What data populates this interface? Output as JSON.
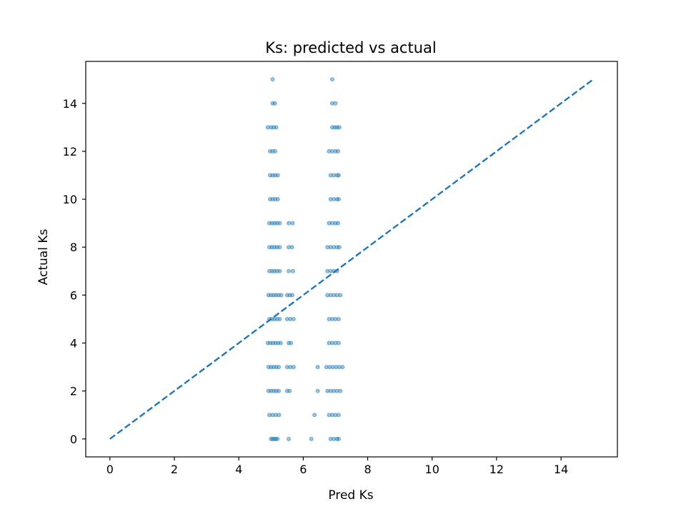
{
  "chart_data": {
    "type": "scatter",
    "title": "Ks: predicted vs actual",
    "xlabel": "Pred Ks",
    "ylabel": "Actual Ks",
    "xlim": [
      -0.75,
      15.75
    ],
    "ylim": [
      -0.75,
      15.75
    ],
    "xticks": [
      0,
      2,
      4,
      6,
      8,
      10,
      12,
      14
    ],
    "yticks": [
      0,
      2,
      4,
      6,
      8,
      10,
      12,
      14
    ],
    "grid": false,
    "colors": {
      "points": "#1f77b4",
      "reference_line": "#1f77b4"
    },
    "reference_line": {
      "style": "dashed",
      "from": [
        0,
        0
      ],
      "to": [
        15,
        15
      ]
    },
    "series": [
      {
        "values": [
          [
            5.0,
            0
          ],
          [
            5.05,
            0
          ],
          [
            5.1,
            0
          ],
          [
            5.15,
            0
          ],
          [
            5.2,
            0
          ],
          [
            5.55,
            0
          ],
          [
            6.25,
            0
          ],
          [
            6.85,
            0
          ],
          [
            6.95,
            0
          ],
          [
            7.05,
            0
          ],
          [
            7.1,
            0
          ],
          [
            4.95,
            1
          ],
          [
            5.05,
            1
          ],
          [
            5.15,
            1
          ],
          [
            5.25,
            1
          ],
          [
            6.35,
            1
          ],
          [
            6.8,
            1
          ],
          [
            6.9,
            1
          ],
          [
            7.0,
            1
          ],
          [
            7.1,
            1
          ],
          [
            4.92,
            2
          ],
          [
            5.0,
            2
          ],
          [
            5.08,
            2
          ],
          [
            5.16,
            2
          ],
          [
            5.24,
            2
          ],
          [
            5.5,
            2
          ],
          [
            5.58,
            2
          ],
          [
            6.45,
            2
          ],
          [
            6.75,
            2
          ],
          [
            6.85,
            2
          ],
          [
            6.95,
            2
          ],
          [
            7.05,
            2
          ],
          [
            7.15,
            2
          ],
          [
            4.92,
            3
          ],
          [
            5.0,
            3
          ],
          [
            5.08,
            3
          ],
          [
            5.16,
            3
          ],
          [
            5.24,
            3
          ],
          [
            5.5,
            3
          ],
          [
            5.6,
            3
          ],
          [
            5.7,
            3
          ],
          [
            6.45,
            3
          ],
          [
            6.72,
            3
          ],
          [
            6.82,
            3
          ],
          [
            6.92,
            3
          ],
          [
            7.02,
            3
          ],
          [
            7.12,
            3
          ],
          [
            7.22,
            3
          ],
          [
            4.9,
            4
          ],
          [
            4.98,
            4
          ],
          [
            5.06,
            4
          ],
          [
            5.14,
            4
          ],
          [
            5.22,
            4
          ],
          [
            5.3,
            4
          ],
          [
            5.55,
            4
          ],
          [
            5.62,
            4
          ],
          [
            6.8,
            4
          ],
          [
            6.9,
            4
          ],
          [
            7.0,
            4
          ],
          [
            7.1,
            4
          ],
          [
            4.95,
            5
          ],
          [
            5.03,
            5
          ],
          [
            5.11,
            5
          ],
          [
            5.19,
            5
          ],
          [
            5.27,
            5
          ],
          [
            5.5,
            5
          ],
          [
            5.6,
            5
          ],
          [
            5.7,
            5
          ],
          [
            6.8,
            5
          ],
          [
            6.9,
            5
          ],
          [
            7.0,
            5
          ],
          [
            7.1,
            5
          ],
          [
            4.92,
            6
          ],
          [
            5.0,
            6
          ],
          [
            5.08,
            6
          ],
          [
            5.16,
            6
          ],
          [
            5.24,
            6
          ],
          [
            5.32,
            6
          ],
          [
            5.5,
            6
          ],
          [
            5.58,
            6
          ],
          [
            5.66,
            6
          ],
          [
            6.75,
            6
          ],
          [
            6.85,
            6
          ],
          [
            6.95,
            6
          ],
          [
            7.05,
            6
          ],
          [
            7.15,
            6
          ],
          [
            4.95,
            7
          ],
          [
            5.03,
            7
          ],
          [
            5.11,
            7
          ],
          [
            5.19,
            7
          ],
          [
            5.27,
            7
          ],
          [
            5.55,
            7
          ],
          [
            5.68,
            7
          ],
          [
            6.75,
            7
          ],
          [
            6.85,
            7
          ],
          [
            6.95,
            7
          ],
          [
            7.05,
            7
          ],
          [
            4.95,
            8
          ],
          [
            5.03,
            8
          ],
          [
            5.11,
            8
          ],
          [
            5.19,
            8
          ],
          [
            5.27,
            8
          ],
          [
            5.55,
            8
          ],
          [
            5.65,
            8
          ],
          [
            6.75,
            8
          ],
          [
            6.85,
            8
          ],
          [
            6.95,
            8
          ],
          [
            7.05,
            8
          ],
          [
            7.12,
            8
          ],
          [
            4.95,
            9
          ],
          [
            5.03,
            9
          ],
          [
            5.11,
            9
          ],
          [
            5.19,
            9
          ],
          [
            5.27,
            9
          ],
          [
            5.55,
            9
          ],
          [
            5.67,
            9
          ],
          [
            6.8,
            9
          ],
          [
            6.9,
            9
          ],
          [
            7.0,
            9
          ],
          [
            7.08,
            9
          ],
          [
            4.97,
            10
          ],
          [
            5.05,
            10
          ],
          [
            5.13,
            10
          ],
          [
            5.21,
            10
          ],
          [
            6.85,
            10
          ],
          [
            6.95,
            10
          ],
          [
            7.05,
            10
          ],
          [
            7.1,
            10
          ],
          [
            4.97,
            11
          ],
          [
            5.05,
            11
          ],
          [
            5.13,
            11
          ],
          [
            5.21,
            11
          ],
          [
            6.85,
            11
          ],
          [
            6.95,
            11
          ],
          [
            7.05,
            11
          ],
          [
            7.1,
            11
          ],
          [
            4.97,
            12
          ],
          [
            5.05,
            12
          ],
          [
            5.13,
            12
          ],
          [
            6.8,
            12
          ],
          [
            6.9,
            12
          ],
          [
            7.0,
            12
          ],
          [
            7.08,
            12
          ],
          [
            4.9,
            13
          ],
          [
            5.0,
            13
          ],
          [
            5.08,
            13
          ],
          [
            5.16,
            13
          ],
          [
            6.9,
            13
          ],
          [
            6.98,
            13
          ],
          [
            7.05,
            13
          ],
          [
            7.12,
            13
          ],
          [
            5.05,
            14
          ],
          [
            5.12,
            14
          ],
          [
            6.9,
            14
          ],
          [
            7.0,
            14
          ],
          [
            5.05,
            15
          ],
          [
            6.9,
            15
          ]
        ]
      }
    ]
  }
}
